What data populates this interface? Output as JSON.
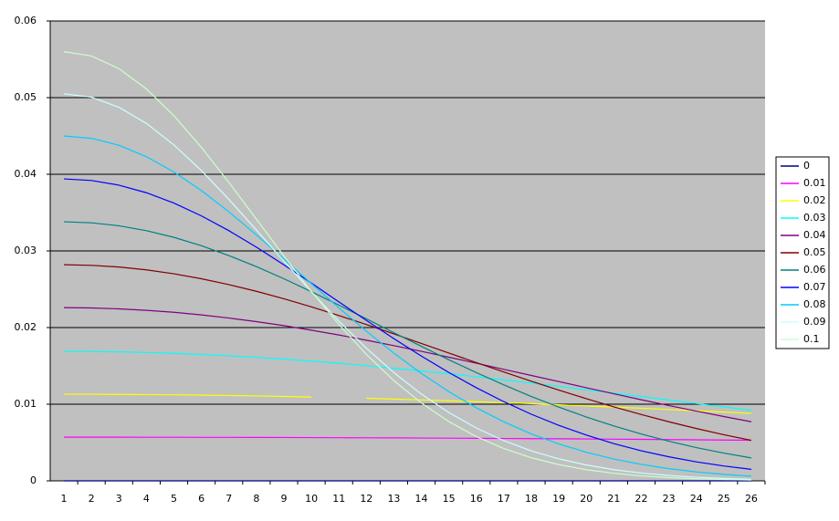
{
  "chart_data": {
    "type": "line",
    "categories": [
      "1",
      "2",
      "3",
      "4",
      "5",
      "6",
      "7",
      "8",
      "9",
      "10",
      "11",
      "12",
      "13",
      "14",
      "15",
      "16",
      "17",
      "18",
      "19",
      "20",
      "21",
      "22",
      "23",
      "24",
      "25",
      "26"
    ],
    "ylim": [
      0,
      0.06
    ],
    "yticks": [
      0,
      0.01,
      0.02,
      0.03,
      0.04,
      0.05,
      0.06
    ],
    "grid": true,
    "legend": "right",
    "series": [
      {
        "name": "0",
        "color": "#000080",
        "values": [
          0,
          0,
          0,
          0,
          0,
          0,
          0,
          0,
          0,
          0,
          0,
          0,
          0,
          0,
          0,
          0,
          0,
          0,
          0,
          0,
          0,
          0,
          0,
          0,
          0,
          0
        ]
      },
      {
        "name": "0.01",
        "color": "#ff00ff",
        "values": [
          0.0057,
          0.0057,
          0.0057,
          0.00569,
          0.00569,
          0.00568,
          0.00568,
          0.00567,
          0.00566,
          0.00565,
          0.00563,
          0.00562,
          0.00561,
          0.00559,
          0.00557,
          0.00555,
          0.00553,
          0.00551,
          0.00549,
          0.00547,
          0.00544,
          0.00542,
          0.00539,
          0.00536,
          0.00533,
          0.0053
        ]
      },
      {
        "name": "0.02",
        "color": "#ffff00",
        "values": [
          0.0113,
          0.0113,
          0.01128,
          0.01126,
          0.01123,
          0.01119,
          0.01114,
          0.01108,
          0.01101,
          0.01094,
          null,
          0.01077,
          0.01067,
          0.01056,
          0.01045,
          0.01033,
          0.0102,
          0.01007,
          0.00993,
          0.00978,
          0.00963,
          0.00947,
          0.00931,
          0.00915,
          0.00897,
          0.0088
        ]
      },
      {
        "name": "0.03",
        "color": "#00ffff",
        "values": [
          0.0169,
          0.01688,
          0.01683,
          0.01675,
          0.01664,
          0.01649,
          0.01632,
          0.01611,
          0.01588,
          0.01562,
          0.01533,
          0.01502,
          0.01469,
          0.01434,
          0.01397,
          0.01358,
          0.01317,
          0.01276,
          0.01233,
          0.01189,
          0.01145,
          0.011,
          0.01055,
          0.0101,
          0.00965,
          0.0092
        ]
      },
      {
        "name": "0.04",
        "color": "#800080",
        "values": [
          0.0226,
          0.02256,
          0.02244,
          0.02225,
          0.02199,
          0.02165,
          0.02124,
          0.02077,
          0.02025,
          0.01966,
          0.01903,
          0.01835,
          0.01764,
          0.0169,
          0.01613,
          0.01535,
          0.01455,
          0.01375,
          0.01295,
          0.01215,
          0.01136,
          0.01058,
          0.00983,
          0.0091,
          0.00839,
          0.00771
        ]
      },
      {
        "name": "0.05",
        "color": "#800000",
        "values": [
          0.0282,
          0.02812,
          0.0279,
          0.02753,
          0.02702,
          0.02637,
          0.0256,
          0.02473,
          0.02376,
          0.0227,
          0.02157,
          0.02039,
          0.01917,
          0.01793,
          0.01668,
          0.01543,
          0.0142,
          0.013,
          0.01184,
          0.01072,
          0.00965,
          0.00865,
          0.00771,
          0.00683,
          0.00602,
          0.00528
        ]
      },
      {
        "name": "0.06",
        "color": "#008080",
        "values": [
          0.0338,
          0.03367,
          0.03328,
          0.03264,
          0.03177,
          0.03068,
          0.02939,
          0.02795,
          0.02637,
          0.02468,
          0.02293,
          0.02114,
          0.01933,
          0.01755,
          0.0158,
          0.01412,
          0.01252,
          0.01101,
          0.00962,
          0.00833,
          0.00716,
          0.00611,
          0.00517,
          0.00434,
          0.00362,
          0.00299
        ]
      },
      {
        "name": "0.07",
        "color": "#0000ff",
        "values": [
          0.0394,
          0.03919,
          0.03858,
          0.03759,
          0.03624,
          0.03457,
          0.03264,
          0.03049,
          0.02819,
          0.0258,
          0.02335,
          0.02093,
          0.01855,
          0.01628,
          0.01414,
          0.01215,
          0.01033,
          0.00869,
          0.00724,
          0.00597,
          0.00486,
          0.00392,
          0.00314,
          0.00248,
          0.00194,
          0.0015
        ]
      },
      {
        "name": "0.08",
        "color": "#00ccff",
        "values": [
          0.045,
          0.04469,
          0.04378,
          0.04229,
          0.0403,
          0.03787,
          0.0351,
          0.03209,
          0.02894,
          0.02574,
          0.02257,
          0.01953,
          0.01666,
          0.01402,
          0.01164,
          0.00953,
          0.0077,
          0.00612,
          0.00481,
          0.00373,
          0.00285,
          0.00215,
          0.00159,
          0.00117,
          0.00085,
          0.0006
        ]
      },
      {
        "name": "0.09",
        "color": "#ccffff",
        "values": [
          0.0505,
          0.05006,
          0.04874,
          0.04663,
          0.04383,
          0.04048,
          0.03672,
          0.03273,
          0.02866,
          0.02466,
          0.02084,
          0.01731,
          0.01412,
          0.01132,
          0.00891,
          0.00689,
          0.00524,
          0.00391,
          0.00287,
          0.00207,
          0.00146,
          0.00102,
          0.0007,
          0.00047,
          0.00031,
          0.0002
        ]
      },
      {
        "name": "0.1",
        "color": "#ccffcc",
        "values": [
          0.056,
          0.05544,
          0.05378,
          0.05113,
          0.04764,
          0.04351,
          0.03893,
          0.03414,
          0.02934,
          0.02471,
          0.0204,
          0.0165,
          0.01308,
          0.01016,
          0.00773,
          0.00577,
          0.00422,
          0.00302,
          0.00212,
          0.00146,
          0.00099,
          0.00065,
          0.00042,
          0.00027,
          0.00017,
          0.0001
        ]
      }
    ]
  }
}
